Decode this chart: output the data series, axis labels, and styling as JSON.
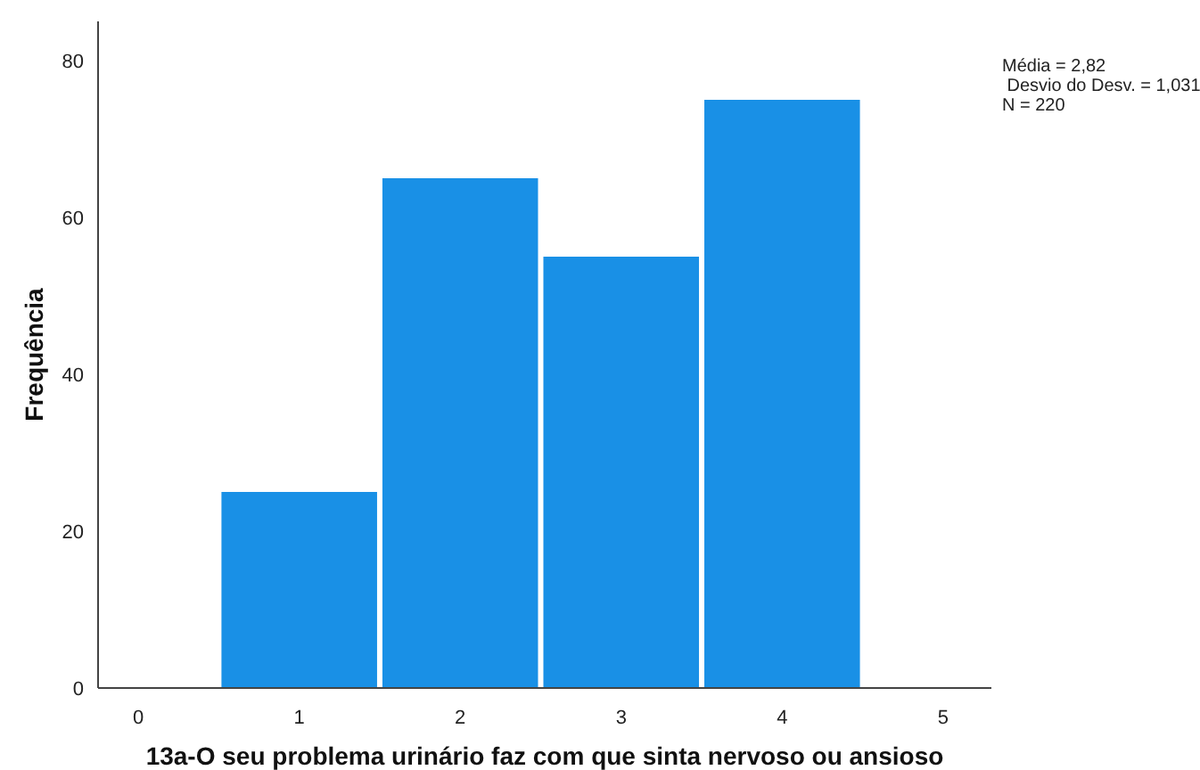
{
  "chart_data": {
    "type": "histogram",
    "xlabel": "13a-O seu problema urinário faz com que sinta nervoso ou ansioso",
    "ylabel": "Frequência",
    "bins": [
      0.5,
      1.5,
      2.5,
      3.5,
      4.5
    ],
    "values": [
      25,
      65,
      55,
      75
    ],
    "color": "#1990e6",
    "xlim": [
      -0.25,
      5.3
    ],
    "xticks": [
      0,
      1,
      2,
      3,
      4,
      5
    ],
    "ylim": [
      0,
      85
    ],
    "yticks": [
      0,
      20,
      40,
      60,
      80
    ],
    "grid": false,
    "annotations": [
      "Média = 2,82",
      " Desvio do Desv. = 1,031",
      "N = 220"
    ]
  }
}
